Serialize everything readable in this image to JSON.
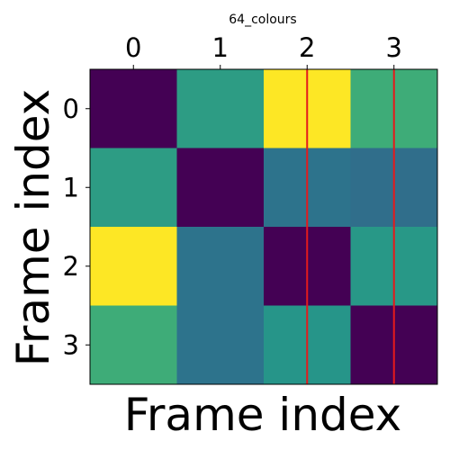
{
  "chart_data": {
    "type": "heatmap",
    "title": "64_colours",
    "xlabel": "Frame index",
    "ylabel": "Frame index",
    "x_ticks": [
      "0",
      "1",
      "2",
      "3"
    ],
    "y_ticks": [
      "0",
      "1",
      "2",
      "3"
    ],
    "x_tick_position": "top",
    "colormap": "viridis",
    "value_range": [
      0,
      1
    ],
    "values": [
      [
        0.0,
        0.55,
        1.0,
        0.62
      ],
      [
        0.55,
        0.0,
        0.38,
        0.36
      ],
      [
        1.0,
        0.38,
        0.0,
        0.53
      ],
      [
        0.62,
        0.38,
        0.52,
        0.0
      ]
    ],
    "vertical_lines": [
      {
        "x": 2,
        "color": "#e41a1c"
      },
      {
        "x": 3,
        "color": "#e41a1c"
      }
    ],
    "grid": false,
    "legend": "none"
  }
}
